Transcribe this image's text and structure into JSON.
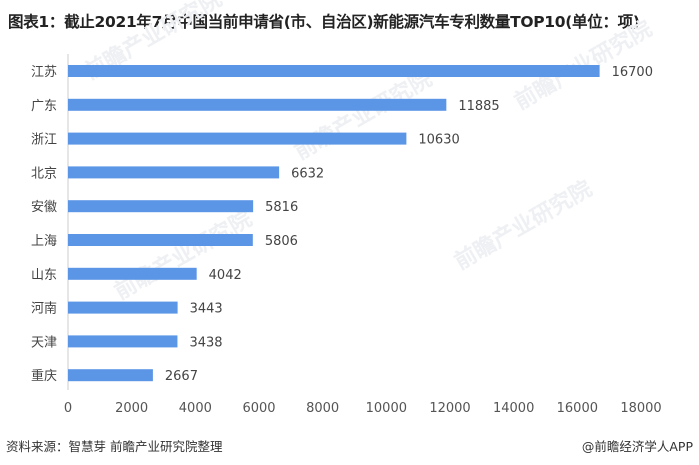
{
  "chart_data": {
    "type": "bar",
    "orientation": "horizontal",
    "title": "图表1：截止2021年7月中国当前申请省(市、自治区)新能源汽车专利数量TOP10(单位：项)",
    "categories": [
      "江苏",
      "广东",
      "浙江",
      "北京",
      "安徽",
      "上海",
      "山东",
      "河南",
      "天津",
      "重庆"
    ],
    "values": [
      16700,
      11885,
      10630,
      6632,
      5816,
      5806,
      4042,
      3443,
      3438,
      2667
    ],
    "xlim": [
      0,
      18000
    ],
    "xticks": [
      0,
      2000,
      4000,
      6000,
      8000,
      10000,
      12000,
      14000,
      16000,
      18000
    ],
    "grid": false,
    "bar_color": "#5b95e6",
    "xlabel": "",
    "ylabel": ""
  },
  "footer": {
    "source": "资料来源：智慧芽 前瞻产业研究院整理",
    "credit": "@前瞻经济学人APP"
  },
  "watermark": "前瞻产业研究院"
}
